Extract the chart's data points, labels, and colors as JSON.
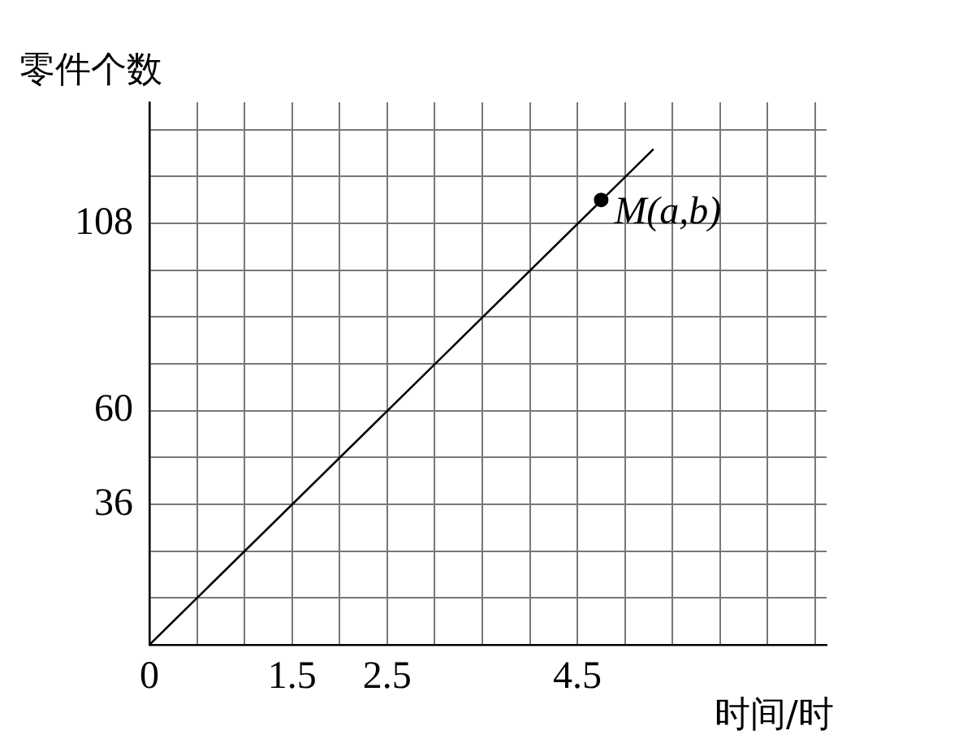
{
  "chart_data": {
    "type": "line",
    "xlabel": "时间/时",
    "ylabel": "零件个数",
    "series": [
      {
        "color": "#000000",
        "x": [
          0,
          5.3
        ],
        "values": [
          0,
          127
        ]
      },
      {
        "type": "scatter",
        "color": "#000000",
        "marker": "circle",
        "x": [
          4.75
        ],
        "values": [
          114
        ]
      }
    ],
    "annotations": [
      {
        "text": "M(a,b)",
        "x": 4.75,
        "y": 114
      }
    ],
    "xlim": [
      0,
      7.12
    ],
    "ylim": [
      0,
      139
    ],
    "xticks": [
      0,
      {
        "value": 0.5,
        "label": null
      },
      {
        "value": 1,
        "label": null
      },
      1.5,
      {
        "value": 2,
        "label": null
      },
      2.5,
      {
        "value": 3,
        "label": null
      },
      {
        "value": 3.5,
        "label": null
      },
      {
        "value": 4,
        "label": null
      },
      4.5,
      {
        "value": 5,
        "label": null
      },
      {
        "value": 5.5,
        "label": null
      },
      {
        "value": 6,
        "label": null
      },
      {
        "value": 6.5,
        "label": null
      },
      {
        "value": 7,
        "label": null
      }
    ],
    "yticks": [
      {
        "value": 0,
        "label": null
      },
      {
        "value": 12,
        "label": null
      },
      {
        "value": 24,
        "label": null
      },
      36,
      {
        "value": 48,
        "label": null
      },
      60,
      {
        "value": 72,
        "label": null
      },
      {
        "value": 84,
        "label": null
      },
      {
        "value": 96,
        "label": null
      },
      108,
      {
        "value": 120,
        "label": null
      },
      {
        "value": 132,
        "label": null
      }
    ],
    "grid": true,
    "legend": false
  }
}
